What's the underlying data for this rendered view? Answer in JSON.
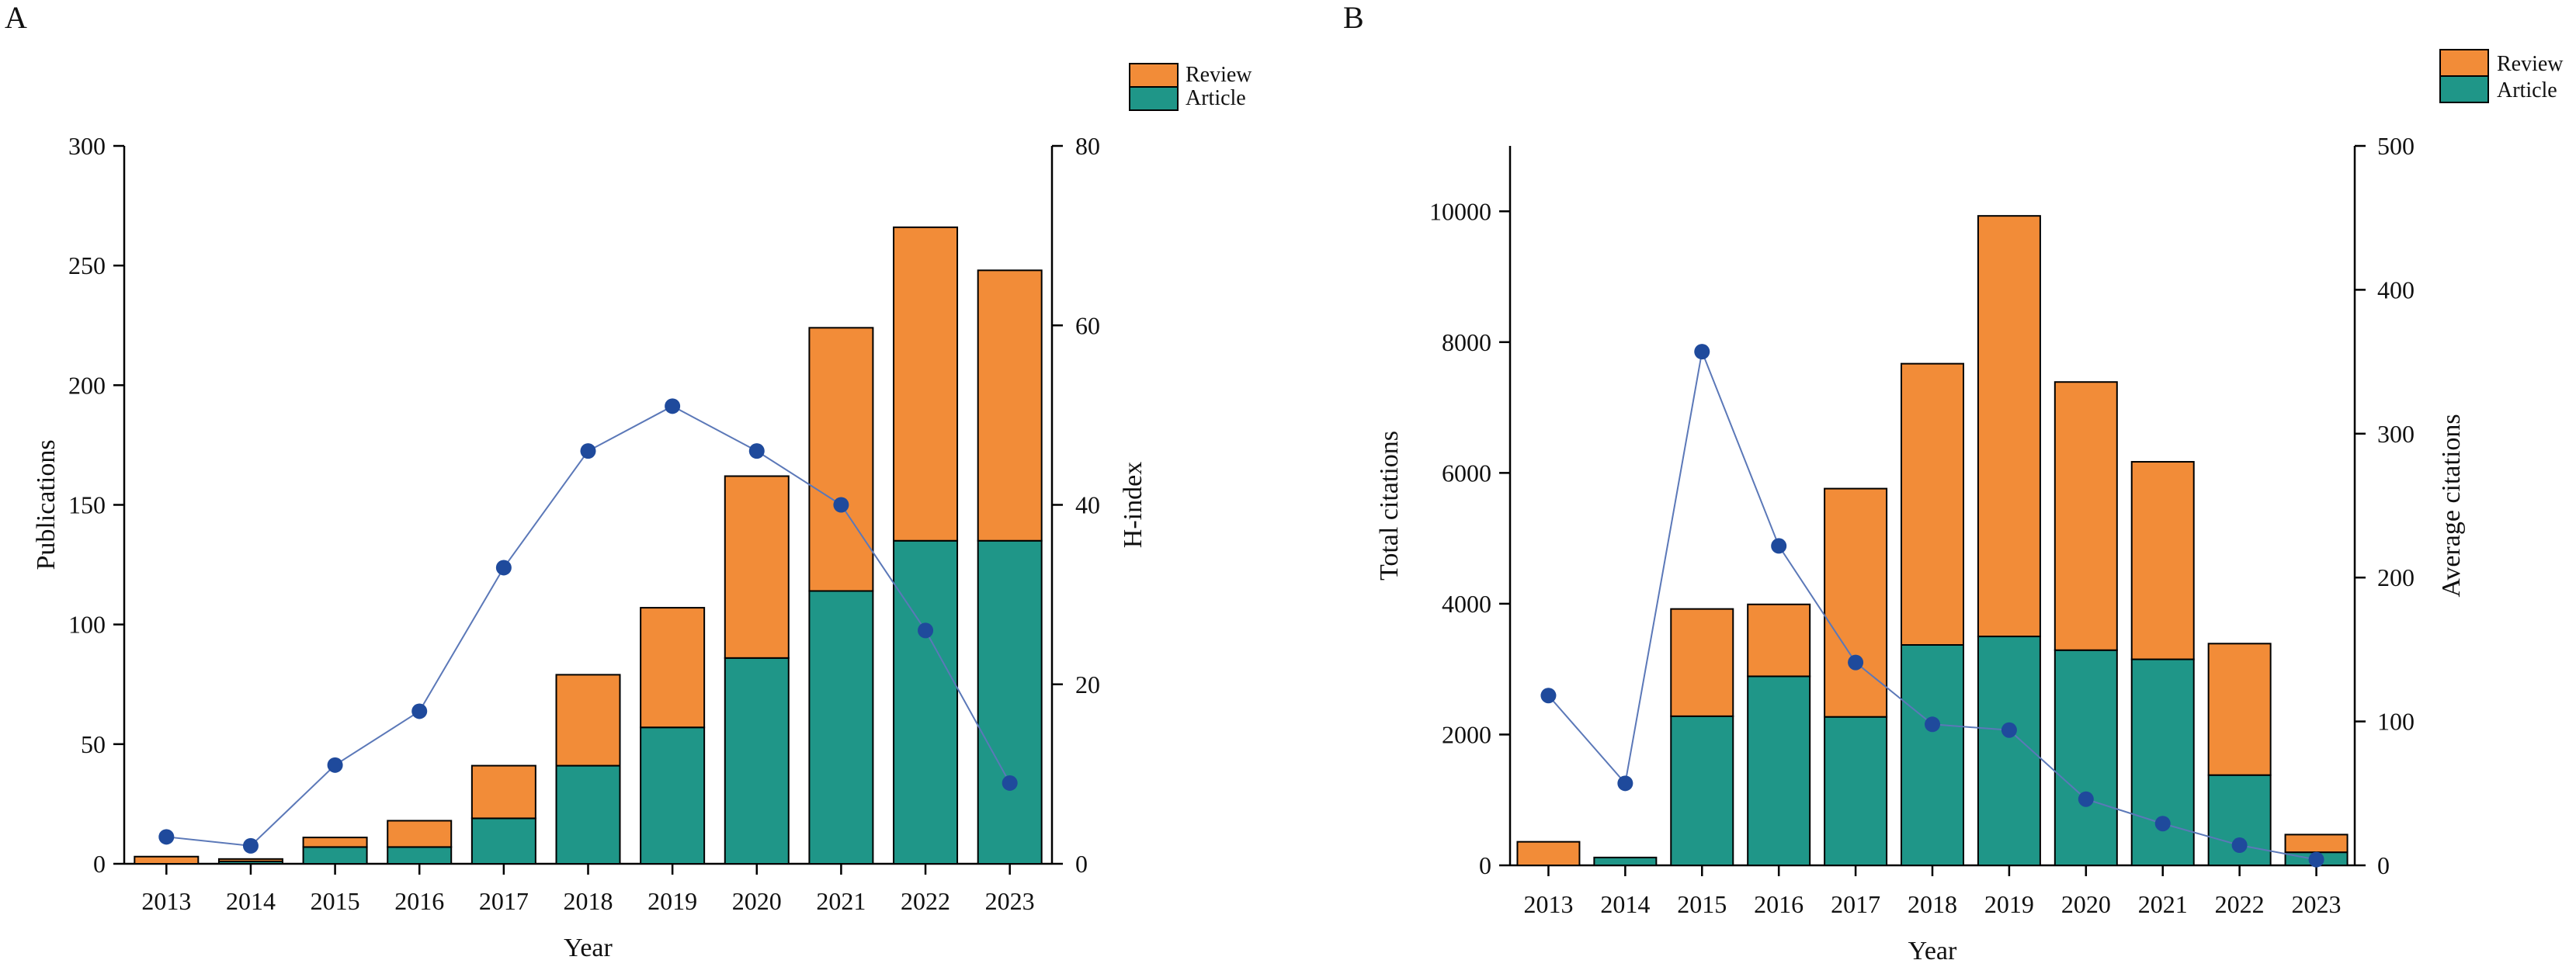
{
  "colors": {
    "review": "#F28C38",
    "article": "#1F9688",
    "line": "#5B78B8",
    "marker": "#1F4A9C",
    "axis": "#000000"
  },
  "legend": {
    "review": "Review",
    "article": "Article"
  },
  "chart_data": [
    {
      "panel": "A",
      "type": "bar",
      "stacked": true,
      "categories": [
        "2013",
        "2014",
        "2015",
        "2016",
        "2017",
        "2018",
        "2019",
        "2020",
        "2021",
        "2022",
        "2023"
      ],
      "series": [
        {
          "name": "Article",
          "values": [
            0,
            1,
            7,
            7,
            19,
            41,
            57,
            86,
            114,
            135,
            135
          ]
        },
        {
          "name": "Review",
          "values": [
            3,
            1,
            4,
            11,
            22,
            38,
            50,
            76,
            110,
            131,
            113
          ]
        }
      ],
      "line_series": {
        "name": "H-index",
        "axis": "right",
        "values": [
          3,
          2,
          11,
          17,
          33,
          46,
          51,
          46,
          40,
          26,
          9
        ]
      },
      "xlabel": "Year",
      "ylabel": "Publications",
      "y2label": "H-index",
      "ylim": [
        0,
        300
      ],
      "y2lim": [
        0,
        80
      ],
      "yticks": [
        0,
        50,
        100,
        150,
        200,
        250,
        300
      ],
      "y2ticks": [
        0,
        20,
        40,
        60,
        80
      ],
      "legend_position": "top-right"
    },
    {
      "panel": "B",
      "type": "bar",
      "stacked": true,
      "categories": [
        "2013",
        "2014",
        "2015",
        "2016",
        "2017",
        "2018",
        "2019",
        "2020",
        "2021",
        "2022",
        "2023"
      ],
      "series": [
        {
          "name": "Article",
          "values": [
            0,
            120,
            2280,
            2890,
            2270,
            3370,
            3500,
            3290,
            3150,
            1380,
            200
          ]
        },
        {
          "name": "Review",
          "values": [
            360,
            0,
            1640,
            1100,
            3490,
            4300,
            6430,
            4100,
            3020,
            2010,
            270
          ]
        }
      ],
      "line_series": {
        "name": "Average citations",
        "axis": "right",
        "values": [
          118,
          57,
          357,
          222,
          141,
          98,
          94,
          46,
          29,
          14,
          4
        ]
      },
      "xlabel": "Year",
      "ylabel": "Total citations",
      "y2label": "Average citations",
      "ylim": [
        0,
        11000
      ],
      "y2lim": [
        0,
        500
      ],
      "yticks": [
        0,
        2000,
        4000,
        6000,
        8000,
        10000
      ],
      "y2ticks": [
        0,
        100,
        200,
        300,
        400,
        500
      ],
      "legend_position": "top-right"
    }
  ]
}
